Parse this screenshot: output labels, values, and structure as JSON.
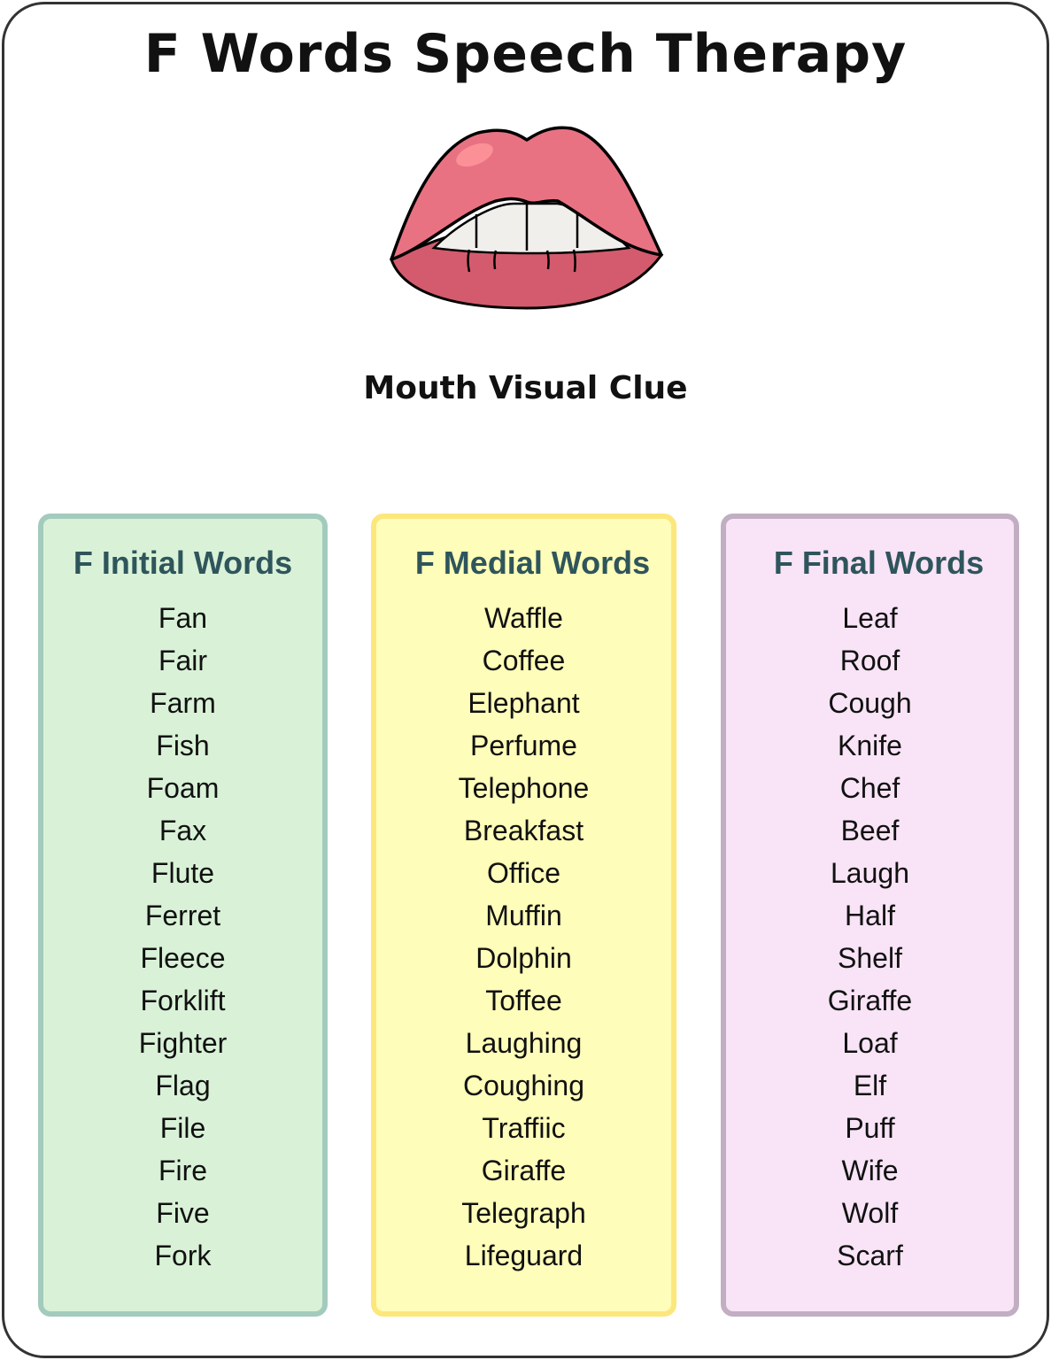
{
  "title": "F Words Speech Therapy",
  "image": {
    "icon": "lips-teeth-illustration",
    "colors": {
      "upper_lip": "#e97282",
      "lower_lip": "#d35b6d",
      "teeth": "#f0efeb"
    }
  },
  "caption": "Mouth Visual Clue",
  "columns": [
    {
      "heading": "F Initial Words",
      "color": "#d9f2d7",
      "words": [
        "Fan",
        "Fair",
        "Farm",
        "Fish",
        "Foam",
        "Fax",
        "Flute",
        "Ferret",
        "Fleece",
        "Forklift",
        "Fighter",
        "Flag",
        "File",
        "Fire",
        "Five",
        "Fork"
      ]
    },
    {
      "heading": "F Medial Words",
      "color": "#fefdb9",
      "words": [
        "Waffle",
        "Coffee",
        "Elephant",
        "Perfume",
        "Telephone",
        "Breakfast",
        "Office",
        "Muffin",
        "Dolphin",
        "Toffee",
        "Laughing",
        "Coughing",
        "Traffiic",
        "Giraffe",
        "Telegraph",
        "Lifeguard"
      ]
    },
    {
      "heading": "F Final Words",
      "color": "#f8e4f6",
      "words": [
        "Leaf",
        "Roof",
        "Cough",
        "Knife",
        "Chef",
        "Beef",
        "Laugh",
        "Half",
        "Shelf",
        "Giraffe",
        "Loaf",
        "Elf",
        "Puff",
        "Wife",
        "Wolf",
        "Scarf"
      ]
    }
  ]
}
